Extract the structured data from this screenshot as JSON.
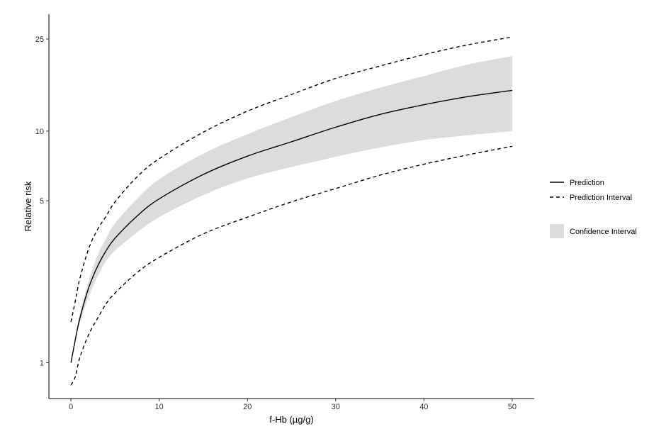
{
  "chart_data": {
    "type": "line",
    "title": "",
    "xlabel": "f-Hb (µg/g)",
    "ylabel": "Relative risk",
    "x_scale": "linear",
    "y_scale": "log",
    "xlim": [
      -2.5,
      52.5
    ],
    "ylim": [
      0.7,
      32
    ],
    "x_ticks": [
      0,
      10,
      20,
      30,
      40,
      50
    ],
    "y_ticks": [
      1,
      5,
      10,
      25
    ],
    "grid": false,
    "legend_position": "right",
    "x": [
      0,
      0.5,
      1,
      2,
      3,
      4,
      5,
      7.5,
      10,
      15,
      20,
      25,
      30,
      35,
      40,
      45,
      50
    ],
    "series": [
      {
        "name": "Prediction",
        "style": "solid",
        "color": "#000000",
        "values": [
          1.0,
          1.26,
          1.55,
          2.1,
          2.6,
          3.05,
          3.45,
          4.3,
          5.1,
          6.5,
          7.8,
          9.0,
          10.4,
          11.8,
          13.0,
          14.1,
          15.0
        ]
      },
      {
        "name": "Prediction Interval",
        "style": "dashed",
        "color": "#000000",
        "upper": [
          1.5,
          1.85,
          2.3,
          3.1,
          3.75,
          4.3,
          4.95,
          6.35,
          7.6,
          9.9,
          12.2,
          14.4,
          16.9,
          19.1,
          21.4,
          23.6,
          25.5
        ],
        "lower": [
          0.8,
          0.87,
          1.05,
          1.32,
          1.55,
          1.8,
          2.0,
          2.45,
          2.85,
          3.6,
          4.25,
          4.95,
          5.65,
          6.45,
          7.2,
          7.9,
          8.6
        ]
      },
      {
        "name": "Confidence Interval",
        "style": "ribbon",
        "color": "#dcdcdc",
        "upper": [
          1.0,
          1.28,
          1.62,
          2.25,
          2.9,
          3.45,
          4.0,
          5.1,
          6.2,
          8.0,
          9.7,
          11.5,
          13.5,
          15.4,
          17.3,
          19.4,
          21.1
        ],
        "lower": [
          1.0,
          1.25,
          1.48,
          1.92,
          2.35,
          2.75,
          3.05,
          3.65,
          4.25,
          5.3,
          6.25,
          7.0,
          7.75,
          8.5,
          9.15,
          9.6,
          10.0
        ]
      }
    ]
  }
}
